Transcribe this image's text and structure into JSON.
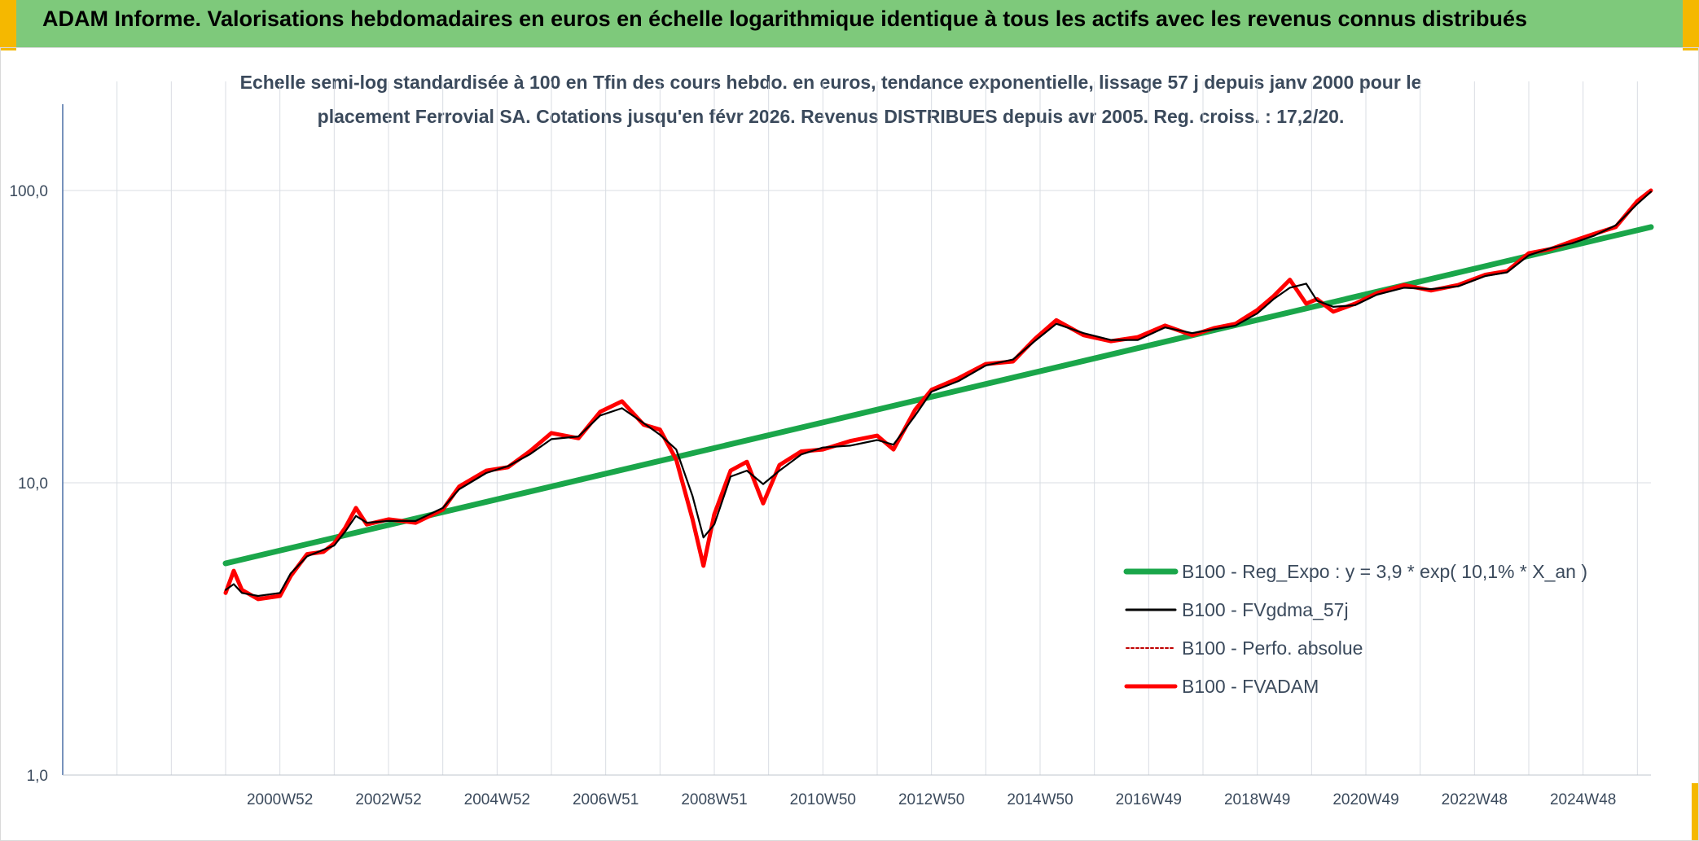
{
  "header": {
    "title": "ADAM Informe. Valorisations hebdomadaires en euros en échelle logarithmique identique à tous les actifs avec les revenus connus distribués"
  },
  "colors": {
    "banner": "#7ec97b",
    "accent": "#f5b800",
    "trend": "#1aa64a",
    "smooth": "#000000",
    "perf": "#c00000",
    "fvadam": "#ff0000",
    "grid": "#d9dde3",
    "axis_text": "#3b4a5c"
  },
  "chart_data": {
    "type": "line",
    "subtitle_line1": "Echelle semi-log standardisée à 100 en Tfin des cours hebdo. en euros, tendance exponentielle, lissage 57 j depuis janv 2000 pour le",
    "subtitle_line2": "placement Ferrovial SA. Cotations jusqu'en févr 2026. Revenus DISTRIBUES depuis avr 2005. Reg. croiss. : 17,2/20.",
    "y_scale": "log",
    "ylim": [
      1,
      200
    ],
    "y_ticks": [
      1,
      10,
      100
    ],
    "y_tick_labels": [
      "1,0",
      "10,0",
      "100,0"
    ],
    "xlim": [
      1997.0,
      2026.25
    ],
    "x_ticks": [
      2001.0,
      2003.0,
      2005.0,
      2007.0,
      2009.0,
      2011.0,
      2013.0,
      2015.0,
      2017.0,
      2019.0,
      2021.0,
      2023.0,
      2025.0
    ],
    "x_tick_labels": [
      "2000W52",
      "2002W52",
      "2004W52",
      "2006W51",
      "2008W51",
      "2010W50",
      "2012W50",
      "2014W50",
      "2016W49",
      "2018W49",
      "2020W49",
      "2022W48",
      "2024W48"
    ],
    "x_gridlines": [
      1998.0,
      1999.0,
      2000.0,
      2001.0,
      2002.0,
      2003.0,
      2004.0,
      2005.0,
      2006.0,
      2007.0,
      2008.0,
      2009.0,
      2010.0,
      2011.0,
      2012.0,
      2013.0,
      2014.0,
      2015.0,
      2016.0,
      2017.0,
      2018.0,
      2019.0,
      2020.0,
      2021.0,
      2022.0,
      2023.0,
      2024.0,
      2025.0,
      2026.0
    ],
    "grid": true,
    "legend_position": "right",
    "series": [
      {
        "name": "B100 - Reg_Expo : y = 3,9 * exp( 10,1% *  X_an )",
        "role": "trend",
        "x": [
          2000.0,
          2026.25
        ],
        "y": [
          5.3,
          75.0
        ]
      },
      {
        "name": "B100 - FVgdma_57j",
        "role": "smooth",
        "x": [
          2000.0,
          2000.15,
          2000.3,
          2000.6,
          2001.0,
          2001.2,
          2001.5,
          2001.8,
          2002.0,
          2002.2,
          2002.4,
          2002.6,
          2003.0,
          2003.5,
          2004.0,
          2004.3,
          2004.8,
          2005.2,
          2005.6,
          2006.0,
          2006.5,
          2006.9,
          2007.3,
          2007.7,
          2008.0,
          2008.3,
          2008.6,
          2008.8,
          2009.0,
          2009.3,
          2009.6,
          2009.9,
          2010.2,
          2010.6,
          2011.0,
          2011.5,
          2012.0,
          2012.3,
          2012.7,
          2013.0,
          2013.5,
          2014.0,
          2014.5,
          2014.9,
          2015.3,
          2015.8,
          2016.3,
          2016.8,
          2017.3,
          2017.8,
          2018.2,
          2018.6,
          2019.0,
          2019.3,
          2019.6,
          2019.9,
          2020.1,
          2020.4,
          2020.8,
          2021.2,
          2021.7,
          2022.2,
          2022.7,
          2023.2,
          2023.6,
          2024.0,
          2024.4,
          2024.8,
          2025.2,
          2025.6,
          2026.0,
          2026.25
        ],
        "y": [
          4.3,
          4.5,
          4.2,
          4.1,
          4.2,
          4.9,
          5.6,
          5.9,
          6.1,
          6.8,
          7.7,
          7.3,
          7.4,
          7.4,
          8.2,
          9.5,
          10.8,
          11.4,
          12.5,
          14.1,
          14.4,
          17.0,
          18.0,
          16.0,
          14.6,
          13.0,
          9.0,
          6.5,
          7.2,
          10.5,
          11.0,
          9.9,
          11.0,
          12.5,
          13.2,
          13.4,
          14.0,
          13.5,
          17.0,
          20.5,
          22.3,
          25.2,
          26.4,
          30.5,
          35.0,
          32.5,
          30.8,
          30.8,
          34.0,
          32.5,
          33.5,
          34.5,
          38.0,
          42.5,
          46.5,
          48.0,
          42.0,
          40.0,
          40.5,
          44.0,
          46.5,
          46.0,
          47.0,
          51.0,
          52.5,
          60.0,
          63.5,
          66.0,
          70.0,
          76.0,
          90.0,
          99.0
        ]
      },
      {
        "name": "B100 - Perfo. absolue",
        "role": "perf",
        "x": [
          2000.0,
          2000.15,
          2000.3,
          2000.6,
          2001.0,
          2001.2,
          2001.5,
          2001.8,
          2002.0,
          2002.2,
          2002.4,
          2002.6,
          2003.0,
          2003.5,
          2004.0,
          2004.3,
          2004.8,
          2005.2,
          2005.6,
          2006.0,
          2006.5,
          2006.9,
          2007.3,
          2007.7,
          2008.0,
          2008.3,
          2008.6,
          2008.8,
          2009.0,
          2009.3,
          2009.6,
          2009.9,
          2010.2,
          2010.6,
          2011.0,
          2011.5,
          2012.0,
          2012.3,
          2012.7,
          2013.0,
          2013.5,
          2014.0,
          2014.5,
          2014.9,
          2015.3,
          2015.8,
          2016.3,
          2016.8,
          2017.3,
          2017.8,
          2018.2,
          2018.6,
          2019.0,
          2019.3,
          2019.6,
          2019.9,
          2020.1,
          2020.4,
          2020.8,
          2021.2,
          2021.7,
          2022.2,
          2022.7,
          2023.2,
          2023.6,
          2024.0,
          2024.4,
          2024.8,
          2025.2,
          2025.6,
          2026.0,
          2026.25
        ],
        "y": [
          4.2,
          5.0,
          4.3,
          4.0,
          4.1,
          4.8,
          5.7,
          5.8,
          6.2,
          7.0,
          8.2,
          7.2,
          7.5,
          7.3,
          8.1,
          9.7,
          11.0,
          11.3,
          12.8,
          14.8,
          14.2,
          17.5,
          19.0,
          15.8,
          15.2,
          12.0,
          7.5,
          5.2,
          7.8,
          11.0,
          11.8,
          8.5,
          11.5,
          12.8,
          13.0,
          13.9,
          14.5,
          13.0,
          17.8,
          20.8,
          22.8,
          25.5,
          26.0,
          31.0,
          36.0,
          32.0,
          30.5,
          31.5,
          34.5,
          32.0,
          33.8,
          35.0,
          39.0,
          43.5,
          49.5,
          41.0,
          42.5,
          38.5,
          41.0,
          44.5,
          47.5,
          45.5,
          47.5,
          51.5,
          53.0,
          61.0,
          63.0,
          67.0,
          71.0,
          75.0,
          92.0,
          100.0
        ]
      },
      {
        "name": "B100 - FVADAM",
        "role": "fvadam",
        "x": [
          2000.0,
          2000.15,
          2000.3,
          2000.6,
          2001.0,
          2001.2,
          2001.5,
          2001.8,
          2002.0,
          2002.2,
          2002.4,
          2002.6,
          2003.0,
          2003.5,
          2004.0,
          2004.3,
          2004.8,
          2005.2,
          2005.6,
          2006.0,
          2006.5,
          2006.9,
          2007.3,
          2007.7,
          2008.0,
          2008.3,
          2008.6,
          2008.8,
          2009.0,
          2009.3,
          2009.6,
          2009.9,
          2010.2,
          2010.6,
          2011.0,
          2011.5,
          2012.0,
          2012.3,
          2012.7,
          2013.0,
          2013.5,
          2014.0,
          2014.5,
          2014.9,
          2015.3,
          2015.8,
          2016.3,
          2016.8,
          2017.3,
          2017.8,
          2018.2,
          2018.6,
          2019.0,
          2019.3,
          2019.6,
          2019.9,
          2020.1,
          2020.4,
          2020.8,
          2021.2,
          2021.7,
          2022.2,
          2022.7,
          2023.2,
          2023.6,
          2024.0,
          2024.4,
          2024.8,
          2025.2,
          2025.6,
          2026.0,
          2026.25
        ],
        "y": [
          4.2,
          5.0,
          4.3,
          4.0,
          4.1,
          4.8,
          5.7,
          5.8,
          6.2,
          7.0,
          8.2,
          7.2,
          7.5,
          7.3,
          8.1,
          9.7,
          11.0,
          11.3,
          12.8,
          14.8,
          14.2,
          17.5,
          19.0,
          15.8,
          15.2,
          12.0,
          7.5,
          5.2,
          7.8,
          11.0,
          11.8,
          8.5,
          11.5,
          12.8,
          13.0,
          13.9,
          14.5,
          13.0,
          17.8,
          20.8,
          22.8,
          25.5,
          26.0,
          31.0,
          36.0,
          32.0,
          30.5,
          31.5,
          34.5,
          32.0,
          33.8,
          35.0,
          39.0,
          43.5,
          49.5,
          41.0,
          42.5,
          38.5,
          41.0,
          44.5,
          47.5,
          45.5,
          47.5,
          51.5,
          53.0,
          61.0,
          63.0,
          67.0,
          71.0,
          75.0,
          92.0,
          100.0
        ]
      }
    ]
  }
}
